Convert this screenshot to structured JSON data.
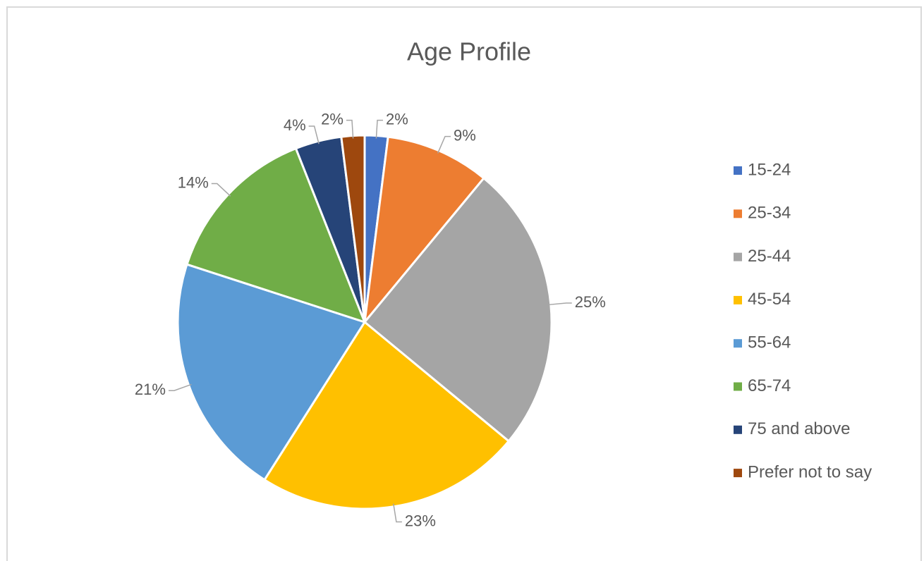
{
  "chart_data": {
    "type": "pie",
    "title": "Age Profile",
    "categories": [
      "15-24",
      "25-34",
      "25-44",
      "45-54",
      "55-64",
      "65-74",
      "75 and above",
      "Prefer not to say"
    ],
    "values": [
      2,
      9,
      25,
      23,
      21,
      14,
      4,
      2
    ],
    "value_labels": [
      "2%",
      "9%",
      "25%",
      "23%",
      "21%",
      "14%",
      "4%",
      "2%"
    ],
    "colors": [
      "#4472c4",
      "#ed7d31",
      "#a5a5a5",
      "#ffc000",
      "#5b9bd5",
      "#70ad47",
      "#264478",
      "#9e480e"
    ],
    "legend": "right"
  }
}
